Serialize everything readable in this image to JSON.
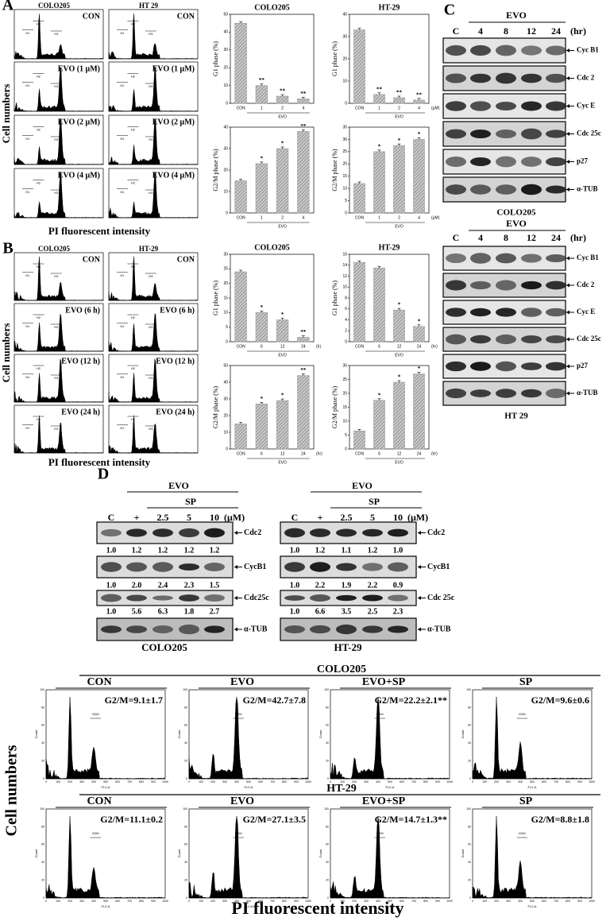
{
  "panel_a": {
    "label": "A",
    "columns": [
      "COLO205",
      "HT 29"
    ],
    "rows": [
      "CON",
      "EVO (1 μM)",
      "EVO (2 μM)",
      "EVO (4 μM)"
    ],
    "gates": [
      "H1",
      "H2",
      "H3"
    ],
    "y_label": "Cell numbers",
    "x_label": "PI fluorescent intensity"
  },
  "panel_b": {
    "label": "B",
    "columns": [
      "COLO205",
      "HT-29"
    ],
    "rows": [
      "CON",
      "EVO (6 h)",
      "EVO (12 h)",
      "EVO (24 h)"
    ],
    "gates": [
      "H1",
      "H2",
      "H3"
    ],
    "y_label": "Cell numbers",
    "x_label": "PI fluorescent intensity"
  },
  "chart_data": [
    {
      "type": "bar",
      "title": "COLO205",
      "y_label": "G1 phase (%)",
      "categories": [
        "CON",
        "1",
        "2",
        "4"
      ],
      "values": [
        45,
        10,
        4,
        2.5
      ],
      "annotations": [
        null,
        "**",
        "**",
        "**"
      ],
      "x_label": "EVO",
      "ylim": [
        0,
        50
      ],
      "yticks": [
        0,
        10,
        20,
        30,
        40,
        50
      ],
      "color": "#9a9a9a"
    },
    {
      "type": "bar",
      "title": "HT-29",
      "y_label": "G1 phase (%)",
      "categories": [
        "CON",
        "1",
        "2",
        "4"
      ],
      "values": [
        33,
        4,
        2.5,
        1.5
      ],
      "annotations": [
        null,
        "**",
        "**",
        "**"
      ],
      "x_label": "EVO",
      "x_unit": "(μM)",
      "ylim": [
        0,
        40
      ],
      "yticks": [
        0,
        10,
        20,
        30,
        40
      ],
      "color": "#9a9a9a"
    },
    {
      "type": "bar",
      "y_label": "G2/M phase (%)",
      "categories": [
        "CON",
        "1",
        "2",
        "4"
      ],
      "values": [
        15,
        23,
        30,
        38
      ],
      "annotations": [
        null,
        "*",
        "*",
        "**"
      ],
      "x_label": "EVO",
      "ylim": [
        0,
        40
      ],
      "yticks": [
        0,
        10,
        20,
        30,
        40
      ],
      "color": "#9a9a9a"
    },
    {
      "type": "bar",
      "y_label": "G2/M phase (%)",
      "categories": [
        "CON",
        "1",
        "2",
        "4"
      ],
      "values": [
        12,
        25,
        27.5,
        30
      ],
      "annotations": [
        null,
        "*",
        "*",
        "*"
      ],
      "x_label": "EVO",
      "x_unit": "(μM)",
      "ylim": [
        0,
        35
      ],
      "yticks": [
        0,
        5,
        10,
        15,
        20,
        25,
        30,
        35
      ],
      "color": "#9a9a9a"
    },
    {
      "type": "bar",
      "title": "COLO205",
      "y_label": "G1 phase (%)",
      "categories": [
        "CON",
        "6",
        "12",
        "24"
      ],
      "values": [
        24,
        10,
        7.5,
        1.5
      ],
      "annotations": [
        null,
        "*",
        "*",
        "**"
      ],
      "x_label": "EVO",
      "x_unit": "(h)",
      "ylim": [
        0,
        30
      ],
      "yticks": [
        0,
        5,
        10,
        15,
        20,
        25,
        30
      ],
      "color": "#9a9a9a"
    },
    {
      "type": "bar",
      "title": "HT-29",
      "y_label": "G1 phase (%)",
      "categories": [
        "CON",
        "6",
        "12",
        "24"
      ],
      "values": [
        14.5,
        13.5,
        5.8,
        2.8
      ],
      "annotations": [
        null,
        null,
        "*",
        "*"
      ],
      "x_label": "EVO",
      "x_unit": "(hr)",
      "ylim": [
        0,
        16
      ],
      "yticks": [
        0,
        2,
        4,
        6,
        8,
        10,
        12,
        14,
        16
      ],
      "color": "#9a9a9a"
    },
    {
      "type": "bar",
      "y_label": "G2/M phase (%)",
      "categories": [
        "CON",
        "6",
        "12",
        "24"
      ],
      "values": [
        15,
        27,
        29,
        44
      ],
      "annotations": [
        null,
        "*",
        "*",
        "**"
      ],
      "x_label": "EVO",
      "x_unit": "(hr)",
      "ylim": [
        0,
        50
      ],
      "yticks": [
        0,
        10,
        20,
        30,
        40,
        50
      ],
      "color": "#9a9a9a"
    },
    {
      "type": "bar",
      "y_label": "G2/M phase (%)",
      "categories": [
        "CON",
        "6",
        "12",
        "24"
      ],
      "values": [
        6.5,
        17.5,
        24,
        27
      ],
      "annotations": [
        null,
        "*",
        "*",
        "*"
      ],
      "x_label": "EVO",
      "x_unit": "(hr)",
      "ylim": [
        0,
        30
      ],
      "yticks": [
        0,
        5,
        10,
        15,
        20,
        25,
        30
      ],
      "color": "#9a9a9a"
    }
  ],
  "panel_c": {
    "label": "C",
    "blocks": [
      {
        "treatment": "EVO",
        "lanes": [
          "C",
          "4",
          "8",
          "12",
          "24"
        ],
        "unit": "(hr)",
        "proteins": [
          "Cyc B1",
          "Cdc 2",
          "Cyc E",
          "Cdc 25c",
          "p27",
          "α-TUB"
        ],
        "cell_line": "COLO205"
      },
      {
        "treatment": "EVO",
        "lanes": [
          "C",
          "4",
          "8",
          "12",
          "24"
        ],
        "unit": "(hr)",
        "proteins": [
          "Cyc B1",
          "Cdc 2",
          "Cyc E",
          "Cdc 25c",
          "p27",
          "α-TUB"
        ],
        "cell_line": "HT 29"
      }
    ]
  },
  "panel_d": {
    "label": "D",
    "blocks": [
      {
        "treatment": "EVO",
        "inhibitor": "SP",
        "lanes": [
          "C",
          "+",
          "2.5",
          "5",
          "10"
        ],
        "unit": "(μM)",
        "rows": [
          {
            "protein": "Cdc2",
            "ratios": [
              "1.0",
              "1.2",
              "1.2",
              "1.2",
              "1.2"
            ]
          },
          {
            "protein": "CycB1",
            "ratios": [
              "1.0",
              "2.0",
              "2.4",
              "2.3",
              "1.5"
            ]
          },
          {
            "protein": "Cdc25c",
            "ratios": [
              "1.0",
              "5.6",
              "6.3",
              "1.8",
              "2.7"
            ]
          },
          {
            "protein": "α-TUB"
          }
        ],
        "cell_line": "COLO205"
      },
      {
        "treatment": "EVO",
        "inhibitor": "SP",
        "lanes": [
          "C",
          "+",
          "2.5",
          "5",
          "10"
        ],
        "unit": "(μM)",
        "rows": [
          {
            "protein": "Cdc2",
            "ratios": [
              "1.0",
              "1.2",
              "1.1",
              "1.2",
              "1.0"
            ]
          },
          {
            "protein": "CycB1",
            "ratios": [
              "1.0",
              "2.2",
              "1.9",
              "2.2",
              "0.9"
            ]
          },
          {
            "protein": "Cdc 25c",
            "ratios": [
              "1.0",
              "6.6",
              "3.5",
              "2.5",
              "2.3"
            ]
          },
          {
            "protein": "α-TUB"
          }
        ],
        "cell_line": "HT-29"
      }
    ]
  },
  "panel_e": {
    "groups": [
      {
        "cell_line": "COLO205",
        "conditions": [
          "CON",
          "EVO",
          "EVO+SP",
          "SP"
        ],
        "g2m": [
          "G2/M=9.1±1.7",
          "G2/M=42.7±7.8",
          "G2/M=22.2±2.1**",
          "G2/M=9.6±0.6"
        ]
      },
      {
        "cell_line": "HT-29",
        "conditions": [
          "CON",
          "EVO",
          "EVO+SP",
          "SP"
        ],
        "g2m": [
          "G2/M=11.1±0.2",
          "G2/M=27.1±3.5",
          "G2/M=14.7±1.3**",
          "G2/M=8.8±1.8"
        ]
      }
    ],
    "gate": "G2M",
    "x_axis": "FL2-A",
    "y_axis": "Count",
    "xticks": [
      0,
      100,
      200,
      300,
      400,
      500,
      600,
      700,
      800,
      900,
      1000
    ],
    "yticks": [
      0,
      20,
      40,
      60,
      80,
      100
    ],
    "y_label": "Cell numbers",
    "x_label": "PI fluorescent intensity"
  }
}
